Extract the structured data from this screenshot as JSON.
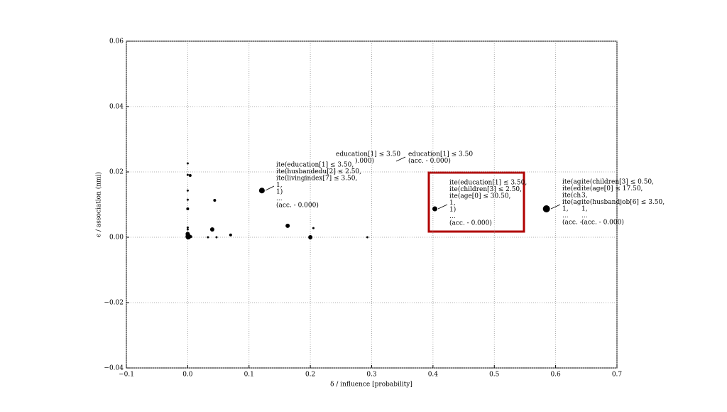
{
  "chart_data": {
    "type": "scatter",
    "xlabel": "δ / influence [probability]",
    "ylabel": "ϵ / association (nmi)",
    "xlim": [
      -0.1,
      0.7
    ],
    "ylim": [
      -0.04,
      0.06
    ],
    "xticks": [
      {
        "value": -0.1,
        "label": "−0.1"
      },
      {
        "value": 0,
        "label": "0.0"
      },
      0.1,
      0.2,
      0.3,
      0.4,
      0.5,
      0.6,
      0.7
    ],
    "yticks": [
      {
        "value": -0.04,
        "label": "−0.04"
      },
      {
        "value": -0.02,
        "label": "−0.02"
      },
      {
        "value": 0,
        "label": "0.00"
      },
      {
        "value": 0.02,
        "label": "0.02"
      },
      {
        "value": 0.04,
        "label": "0.04"
      },
      {
        "value": 0.06,
        "label": "0.06"
      }
    ],
    "grid": true,
    "color": "#000000",
    "x": [
      0,
      0,
      0.004,
      0,
      0,
      0,
      0,
      0,
      0,
      0.001,
      0.005,
      0.033,
      0.044,
      0.04,
      0.047,
      0.07,
      0.121,
      0.163,
      0.2,
      0.205,
      0.293,
      0.403,
      0.585
    ],
    "values": [
      0.0226,
      0.0191,
      0.0189,
      0.0143,
      0.0115,
      0.0087,
      0.003,
      0.0024,
      0.001,
      0.0002,
      0.0002,
      0,
      0.0113,
      0.0024,
      0,
      0.0007,
      0.0143,
      0.0035,
      0,
      0.0028,
      0,
      0.0087,
      0.0087
    ],
    "sizes": [
      1.5,
      1.5,
      2,
      1.5,
      1.5,
      2,
      1.5,
      1.5,
      3,
      4,
      2,
      1.5,
      2,
      3,
      1.5,
      2,
      4,
      3,
      3,
      1.5,
      1.5,
      3.5,
      5
    ],
    "annotations": [
      {
        "lines": [
          "ite(education[1] ≤ 3.50,",
          "ite(husbandedu[2] ≤ 2.50,",
          "ite(livingindex[7] ≤ 3.50,",
          "1,",
          "1)",
          "...",
          "(acc. - 0.000)"
        ]
      },
      {
        "lines": [
          "education[1] ≤ 3.50",
          ").000)"
        ]
      },
      {
        "lines": [
          "education[1] ≤ 3.50",
          "(acc. - 0.000)"
        ]
      },
      {
        "lines": [
          "ite(education[1] ≤ 3.50,",
          "ite(children[3] ≤ 2.50,",
          "ite(age[0] ≤ 30.50,",
          "1,",
          "1)",
          "...",
          "(acc. - 0.000)"
        ]
      },
      {
        "lines": [
          "ite(ag",
          "ite(ed",
          "ite(ch",
          "ite(ag",
          "1,",
          "...",
          "(acc. -"
        ]
      },
      {
        "lines": [
          "ite(children[3] ≤ 0.50,",
          "ite(age[0] ≤ 17.50,",
          "3,",
          "ite(husbandjob[6] ≤ 3.50,",
          "1,",
          "...",
          "(acc. - 0.000)"
        ]
      }
    ]
  }
}
